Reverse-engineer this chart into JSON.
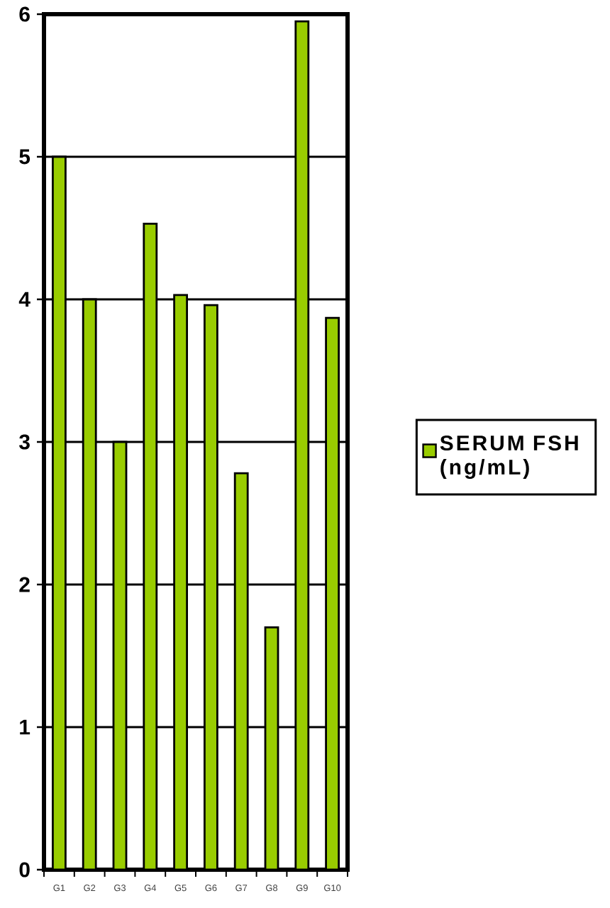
{
  "chart_data": {
    "type": "bar",
    "categories": [
      "G1",
      "G2",
      "G3",
      "G4",
      "G5",
      "G6",
      "G7",
      "G8",
      "G9",
      "G10"
    ],
    "series": [
      {
        "name": "SERUM FSH (ng/mL)",
        "color": "#99cc00",
        "values": [
          5.0,
          4.0,
          3.0,
          4.53,
          4.03,
          3.96,
          2.78,
          1.7,
          5.95,
          3.87
        ]
      }
    ],
    "ylim": [
      0,
      6
    ],
    "yticks": [
      0,
      1,
      2,
      3,
      4,
      5,
      6
    ],
    "grid": "y",
    "legend": "right"
  }
}
